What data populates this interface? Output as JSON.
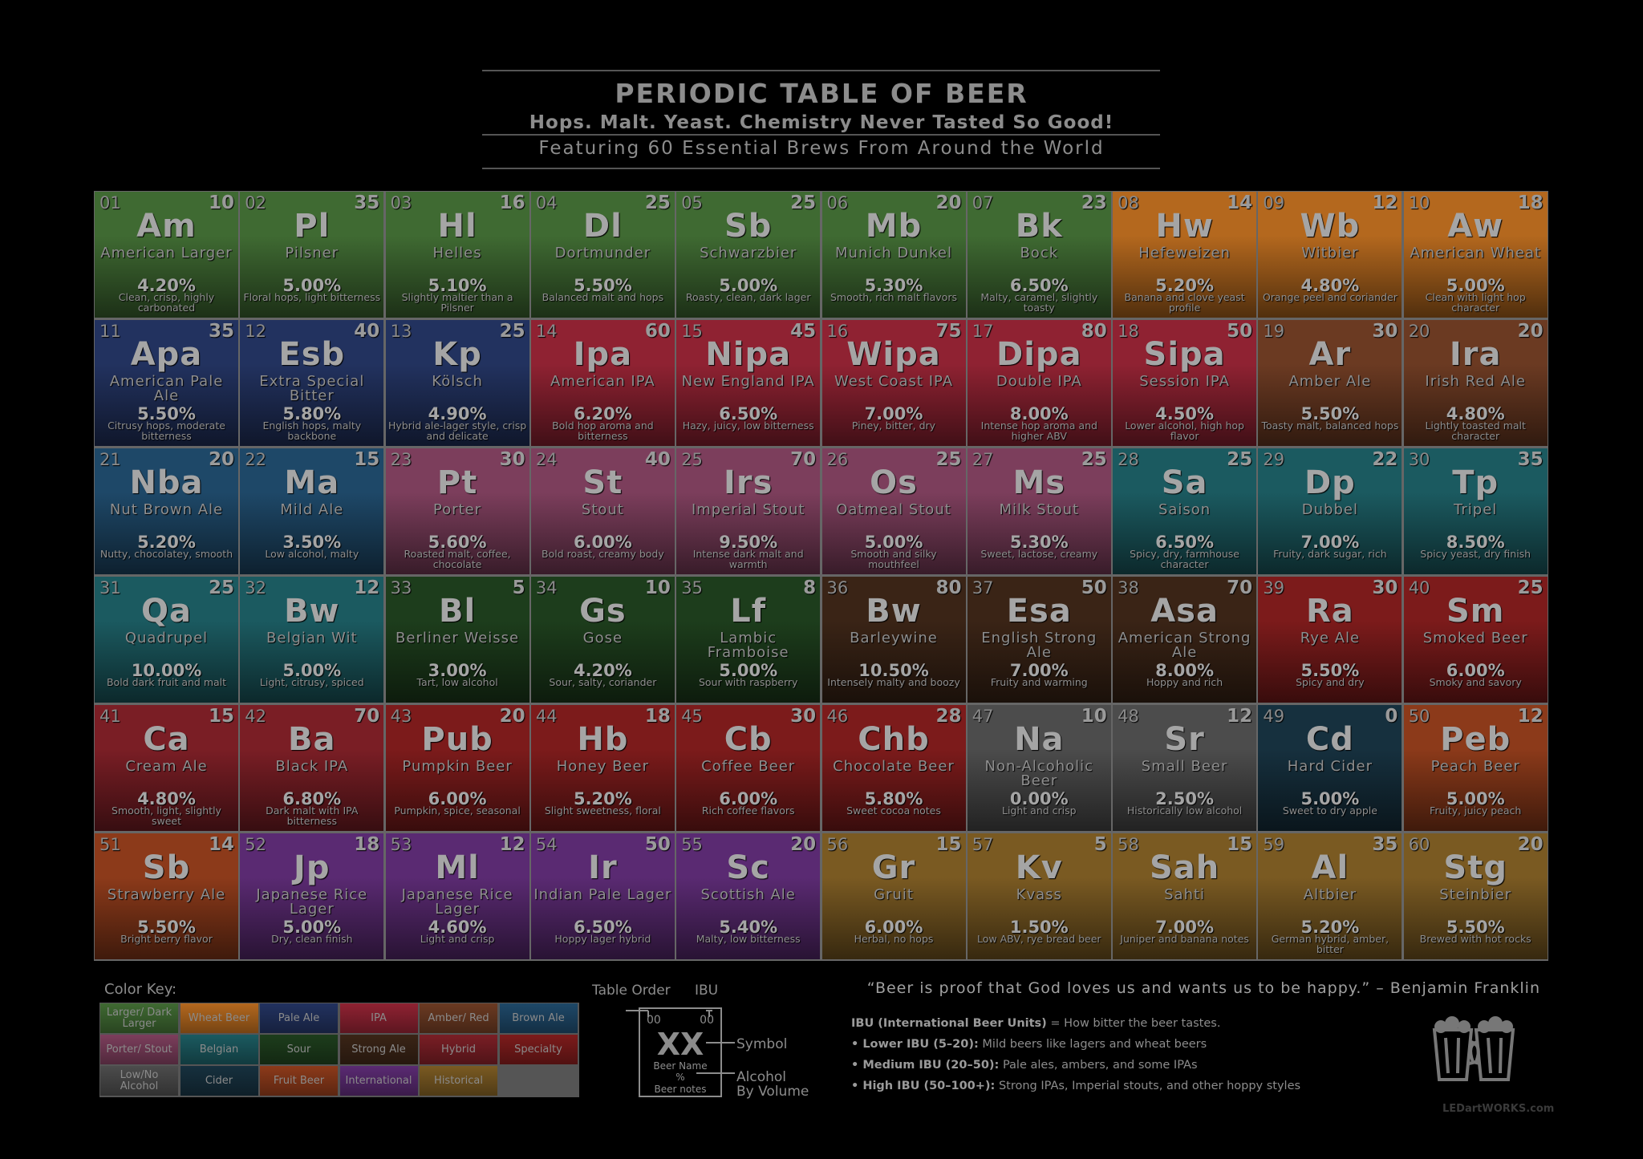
{
  "header": {
    "title": "PERIODIC TABLE OF BEER",
    "subtitle": "Hops. Malt. Yeast. Chemistry Never Tasted So Good!",
    "featuring": "Featuring 60 Essential Brews From Around the World"
  },
  "colors": {
    "lager": "#3f6a32",
    "wheat": "#b4681e",
    "pale": "#22325f",
    "ipa": "#8f2232",
    "amber": "#6b3a22",
    "brown": "#1e4868",
    "porter": "#7c3e5c",
    "belgian": "#1b5a60",
    "sour": "#1d3d1c",
    "strong": "#3a2416",
    "hybrid": "#7a1e25",
    "specialty": "#7c1b1b",
    "lowno": "#4c4c4c",
    "cider": "#16303e",
    "fruit": "#8c3a1a",
    "international": "#5a2a72",
    "historical": "#7a5a22"
  },
  "elements": [
    {
      "num": "01",
      "ibu": "10",
      "sym": "Am",
      "name": "American Larger",
      "abv": "4.20%",
      "notes": "Clean, crisp, highly carbonated",
      "cat": "lager"
    },
    {
      "num": "02",
      "ibu": "35",
      "sym": "Pl",
      "name": "Pilsner",
      "abv": "5.00%",
      "notes": "Floral hops, light bitterness",
      "cat": "lager"
    },
    {
      "num": "03",
      "ibu": "16",
      "sym": "Hl",
      "name": "Helles",
      "abv": "5.10%",
      "notes": "Slightly maltier than a Pilsner",
      "cat": "lager"
    },
    {
      "num": "04",
      "ibu": "25",
      "sym": "Dl",
      "name": "Dortmunder",
      "abv": "5.50%",
      "notes": "Balanced malt and hops",
      "cat": "lager"
    },
    {
      "num": "05",
      "ibu": "25",
      "sym": "Sb",
      "name": "Schwarzbier",
      "abv": "5.00%",
      "notes": "Roasty, clean, dark lager",
      "cat": "lager"
    },
    {
      "num": "06",
      "ibu": "20",
      "sym": "Mb",
      "name": "Munich Dunkel",
      "abv": "5.30%",
      "notes": "Smooth, rich malt flavors",
      "cat": "lager"
    },
    {
      "num": "07",
      "ibu": "23",
      "sym": "Bk",
      "name": "Bock",
      "abv": "6.50%",
      "notes": "Malty, caramel, slightly toasty",
      "cat": "lager"
    },
    {
      "num": "08",
      "ibu": "14",
      "sym": "Hw",
      "name": "Hefeweizen",
      "abv": "5.20%",
      "notes": "Banana and clove yeast profile",
      "cat": "wheat"
    },
    {
      "num": "09",
      "ibu": "12",
      "sym": "Wb",
      "name": "Witbier",
      "abv": "4.80%",
      "notes": "Orange peel and coriander",
      "cat": "wheat"
    },
    {
      "num": "10",
      "ibu": "18",
      "sym": "Aw",
      "name": "American Wheat",
      "abv": "5.00%",
      "notes": "Clean with light hop character",
      "cat": "wheat"
    },
    {
      "num": "11",
      "ibu": "35",
      "sym": "Apa",
      "name": "American Pale Ale",
      "abv": "5.50%",
      "notes": "Citrusy hops, moderate bitterness",
      "cat": "pale"
    },
    {
      "num": "12",
      "ibu": "40",
      "sym": "Esb",
      "name": "Extra Special Bitter",
      "abv": "5.80%",
      "notes": "English hops, malty backbone",
      "cat": "pale"
    },
    {
      "num": "13",
      "ibu": "25",
      "sym": "Kp",
      "name": "Kölsch",
      "abv": "4.90%",
      "notes": "Hybrid ale-lager style, crisp and delicate",
      "cat": "pale"
    },
    {
      "num": "14",
      "ibu": "60",
      "sym": "Ipa",
      "name": "American IPA",
      "abv": "6.20%",
      "notes": "Bold hop aroma and bitterness",
      "cat": "ipa"
    },
    {
      "num": "15",
      "ibu": "45",
      "sym": "Nipa",
      "name": "New England IPA",
      "abv": "6.50%",
      "notes": "Hazy, juicy, low bitterness",
      "cat": "ipa"
    },
    {
      "num": "16",
      "ibu": "75",
      "sym": "Wipa",
      "name": "West Coast IPA",
      "abv": "7.00%",
      "notes": "Piney, bitter, dry",
      "cat": "ipa"
    },
    {
      "num": "17",
      "ibu": "80",
      "sym": "Dipa",
      "name": "Double IPA",
      "abv": "8.00%",
      "notes": "Intense hop aroma and higher ABV",
      "cat": "ipa"
    },
    {
      "num": "18",
      "ibu": "50",
      "sym": "Sipa",
      "name": "Session IPA",
      "abv": "4.50%",
      "notes": "Lower alcohol, high hop flavor",
      "cat": "ipa"
    },
    {
      "num": "19",
      "ibu": "30",
      "sym": "Ar",
      "name": "Amber Ale",
      "abv": "5.50%",
      "notes": "Toasty malt, balanced hops",
      "cat": "amber"
    },
    {
      "num": "20",
      "ibu": "20",
      "sym": "Ira",
      "name": "Irish Red Ale",
      "abv": "4.80%",
      "notes": "Lightly toasted malt character",
      "cat": "amber"
    },
    {
      "num": "21",
      "ibu": "20",
      "sym": "Nba",
      "name": "Nut Brown Ale",
      "abv": "5.20%",
      "notes": "Nutty, chocolatey, smooth",
      "cat": "brown"
    },
    {
      "num": "22",
      "ibu": "15",
      "sym": "Ma",
      "name": "Mild Ale",
      "abv": "3.50%",
      "notes": "Low alcohol, malty",
      "cat": "brown"
    },
    {
      "num": "23",
      "ibu": "30",
      "sym": "Pt",
      "name": "Porter",
      "abv": "5.60%",
      "notes": "Roasted malt, coffee, chocolate",
      "cat": "porter"
    },
    {
      "num": "24",
      "ibu": "40",
      "sym": "St",
      "name": "Stout",
      "abv": "6.00%",
      "notes": "Bold roast, creamy body",
      "cat": "porter"
    },
    {
      "num": "25",
      "ibu": "70",
      "sym": "Irs",
      "name": "Imperial Stout",
      "abv": "9.50%",
      "notes": "Intense dark malt and warmth",
      "cat": "porter"
    },
    {
      "num": "26",
      "ibu": "25",
      "sym": "Os",
      "name": "Oatmeal Stout",
      "abv": "5.00%",
      "notes": "Smooth and silky mouthfeel",
      "cat": "porter"
    },
    {
      "num": "27",
      "ibu": "25",
      "sym": "Ms",
      "name": "Milk Stout",
      "abv": "5.30%",
      "notes": "Sweet, lactose, creamy",
      "cat": "porter"
    },
    {
      "num": "28",
      "ibu": "25",
      "sym": "Sa",
      "name": "Saison",
      "abv": "6.50%",
      "notes": "Spicy, dry, farmhouse character",
      "cat": "belgian"
    },
    {
      "num": "29",
      "ibu": "22",
      "sym": "Dp",
      "name": "Dubbel",
      "abv": "7.00%",
      "notes": "Fruity, dark sugar, rich",
      "cat": "belgian"
    },
    {
      "num": "30",
      "ibu": "35",
      "sym": "Tp",
      "name": "Tripel",
      "abv": "8.50%",
      "notes": "Spicy yeast, dry finish",
      "cat": "belgian"
    },
    {
      "num": "31",
      "ibu": "25",
      "sym": "Qa",
      "name": "Quadrupel",
      "abv": "10.00%",
      "notes": "Bold dark fruit and malt",
      "cat": "belgian"
    },
    {
      "num": "32",
      "ibu": "12",
      "sym": "Bw",
      "name": "Belgian Wit",
      "abv": "5.00%",
      "notes": "Light, citrusy, spiced",
      "cat": "belgian"
    },
    {
      "num": "33",
      "ibu": "5",
      "sym": "Bl",
      "name": "Berliner Weisse",
      "abv": "3.00%",
      "notes": "Tart, low alcohol",
      "cat": "sour"
    },
    {
      "num": "34",
      "ibu": "10",
      "sym": "Gs",
      "name": "Gose",
      "abv": "4.20%",
      "notes": "Sour, salty, coriander",
      "cat": "sour"
    },
    {
      "num": "35",
      "ibu": "8",
      "sym": "Lf",
      "name": "Lambic Framboise",
      "abv": "5.00%",
      "notes": "Sour with raspberry",
      "cat": "sour"
    },
    {
      "num": "36",
      "ibu": "80",
      "sym": "Bw",
      "name": "Barleywine",
      "abv": "10.50%",
      "notes": "Intensely malty and boozy",
      "cat": "strong"
    },
    {
      "num": "37",
      "ibu": "50",
      "sym": "Esa",
      "name": "English Strong Ale",
      "abv": "7.00%",
      "notes": "Fruity and warming",
      "cat": "strong"
    },
    {
      "num": "38",
      "ibu": "70",
      "sym": "Asa",
      "name": "American Strong Ale",
      "abv": "8.00%",
      "notes": "Hoppy and rich",
      "cat": "strong"
    },
    {
      "num": "39",
      "ibu": "30",
      "sym": "Ra",
      "name": "Rye Ale",
      "abv": "5.50%",
      "notes": "Spicy and dry",
      "cat": "specialty"
    },
    {
      "num": "40",
      "ibu": "25",
      "sym": "Sm",
      "name": "Smoked Beer",
      "abv": "6.00%",
      "notes": "Smoky and savory",
      "cat": "specialty"
    },
    {
      "num": "41",
      "ibu": "15",
      "sym": "Ca",
      "name": "Cream Ale",
      "abv": "4.80%",
      "notes": "Smooth, light, slightly sweet",
      "cat": "hybrid"
    },
    {
      "num": "42",
      "ibu": "70",
      "sym": "Ba",
      "name": "Black IPA",
      "abv": "6.80%",
      "notes": "Dark malt with IPA bitterness",
      "cat": "hybrid"
    },
    {
      "num": "43",
      "ibu": "20",
      "sym": "Pub",
      "name": "Pumpkin Beer",
      "abv": "6.00%",
      "notes": "Pumpkin, spice, seasonal",
      "cat": "specialty"
    },
    {
      "num": "44",
      "ibu": "18",
      "sym": "Hb",
      "name": "Honey Beer",
      "abv": "5.20%",
      "notes": "Slight sweetness, floral",
      "cat": "specialty"
    },
    {
      "num": "45",
      "ibu": "30",
      "sym": "Cb",
      "name": "Coffee Beer",
      "abv": "6.00%",
      "notes": "Rich coffee flavors",
      "cat": "specialty"
    },
    {
      "num": "46",
      "ibu": "28",
      "sym": "Chb",
      "name": "Chocolate Beer",
      "abv": "5.80%",
      "notes": "Sweet cocoa notes",
      "cat": "specialty"
    },
    {
      "num": "47",
      "ibu": "10",
      "sym": "Na",
      "name": "Non-Alcoholic Beer",
      "abv": "0.00%",
      "notes": "Light and crisp",
      "cat": "lowno"
    },
    {
      "num": "48",
      "ibu": "12",
      "sym": "Sr",
      "name": "Small Beer",
      "abv": "2.50%",
      "notes": "Historically low alcohol",
      "cat": "lowno"
    },
    {
      "num": "49",
      "ibu": "0",
      "sym": "Cd",
      "name": "Hard Cider",
      "abv": "5.00%",
      "notes": "Sweet to dry apple",
      "cat": "cider"
    },
    {
      "num": "50",
      "ibu": "12",
      "sym": "Peb",
      "name": "Peach Beer",
      "abv": "5.00%",
      "notes": "Fruity, juicy peach",
      "cat": "fruit"
    },
    {
      "num": "51",
      "ibu": "14",
      "sym": "Sb",
      "name": "Strawberry Ale",
      "abv": "5.50%",
      "notes": "Bright berry flavor",
      "cat": "fruit"
    },
    {
      "num": "52",
      "ibu": "18",
      "sym": "Jp",
      "name": "Japanese Rice Lager",
      "abv": "5.00%",
      "notes": "Dry, clean finish",
      "cat": "international"
    },
    {
      "num": "53",
      "ibu": "12",
      "sym": "Ml",
      "name": "Japanese Rice Lager",
      "abv": "4.60%",
      "notes": "Light and crisp",
      "cat": "international"
    },
    {
      "num": "54",
      "ibu": "50",
      "sym": "Ir",
      "name": "Indian Pale Lager",
      "abv": "6.50%",
      "notes": "Hoppy lager hybrid",
      "cat": "international"
    },
    {
      "num": "55",
      "ibu": "20",
      "sym": "Sc",
      "name": "Scottish Ale",
      "abv": "5.40%",
      "notes": "Malty, low bitterness",
      "cat": "international"
    },
    {
      "num": "56",
      "ibu": "15",
      "sym": "Gr",
      "name": "Gruit",
      "abv": "6.00%",
      "notes": "Herbal, no hops",
      "cat": "historical"
    },
    {
      "num": "57",
      "ibu": "5",
      "sym": "Kv",
      "name": "Kvass",
      "abv": "1.50%",
      "notes": "Low ABV, rye bread beer",
      "cat": "historical"
    },
    {
      "num": "58",
      "ibu": "15",
      "sym": "Sah",
      "name": "Sahti",
      "abv": "7.00%",
      "notes": "Juniper and banana notes",
      "cat": "historical"
    },
    {
      "num": "59",
      "ibu": "35",
      "sym": "Al",
      "name": "Altbier",
      "abv": "5.20%",
      "notes": "German hybrid, amber, bitter",
      "cat": "historical"
    },
    {
      "num": "60",
      "ibu": "20",
      "sym": "Stg",
      "name": "Steinbier",
      "abv": "5.50%",
      "notes": "Brewed with hot rocks",
      "cat": "historical"
    }
  ],
  "color_key": {
    "title": "Color Key:",
    "items": [
      {
        "label": "Larger/ Dark Larger",
        "cat": "lager"
      },
      {
        "label": "Wheat Beer",
        "cat": "wheat"
      },
      {
        "label": "Pale Ale",
        "cat": "pale"
      },
      {
        "label": "IPA",
        "cat": "ipa"
      },
      {
        "label": "Amber/ Red",
        "cat": "amber"
      },
      {
        "label": "Brown Ale",
        "cat": "brown"
      },
      {
        "label": "Porter/ Stout",
        "cat": "porter"
      },
      {
        "label": "Belgian",
        "cat": "belgian"
      },
      {
        "label": "Sour",
        "cat": "sour"
      },
      {
        "label": "Strong Ale",
        "cat": "strong"
      },
      {
        "label": "Hybrid",
        "cat": "hybrid"
      },
      {
        "label": "Specialty",
        "cat": "specialty"
      },
      {
        "label": "Low/No Alcohol",
        "cat": "lowno"
      },
      {
        "label": "Cider",
        "cat": "cider"
      },
      {
        "label": "Fruit Beer",
        "cat": "fruit"
      },
      {
        "label": "International",
        "cat": "international"
      },
      {
        "label": "Historical",
        "cat": "historical"
      }
    ]
  },
  "legend": {
    "table_order": "Table Order",
    "ibu": "IBU",
    "order_sample": "00",
    "ibu_sample": "00",
    "symbol_sample": "XX",
    "beer_name": "Beer Name",
    "percent": "%",
    "beer_notes": "Beer notes",
    "symbol_label": "Symbol",
    "alcohol_label_1": "Alcohol",
    "alcohol_label_2": "By Volume"
  },
  "quote": "“Beer is proof that God loves us and wants us to be happy.” – Benjamin Franklin",
  "ibu_info": [
    {
      "bold": "IBU (International Beer Units)",
      "text": " = How bitter the beer tastes."
    },
    {
      "bold": "• Lower IBU (5–20):",
      "text": " Mild beers like lagers and wheat beers"
    },
    {
      "bold": "• Medium IBU (20–50):",
      "text": " Pale ales, ambers, and some IPAs"
    },
    {
      "bold": "• High IBU (50–100+):",
      "text": " Strong IPAs, Imperial stouts, and other hoppy styles"
    }
  ],
  "watermark": "LEDartWORKS.com"
}
